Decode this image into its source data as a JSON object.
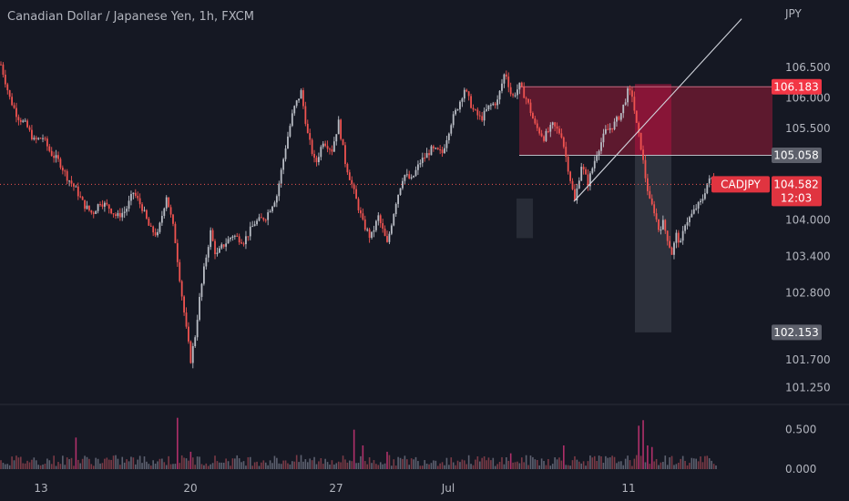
{
  "chart_data": {
    "type": "candlestick",
    "title": "Canadian Dollar / Japanese Yen, 1h, FXCM",
    "symbol": "CADJPY",
    "currency": "JPY",
    "grid": false,
    "price_axis": {
      "ticks": [
        "106.500",
        "106.000",
        "105.500",
        "104.000",
        "103.400",
        "102.800",
        "101.700",
        "101.250"
      ],
      "ylim": [
        101.0,
        106.95
      ]
    },
    "time_axis": {
      "ticks": [
        "13",
        "20",
        "27",
        "Jul",
        "11"
      ]
    },
    "volume_axis": {
      "ticks": [
        "0.500",
        "0.000"
      ],
      "ylim": [
        0,
        0.75
      ]
    },
    "price_path": [
      [
        0,
        106.55
      ],
      [
        8,
        106.0
      ],
      [
        15,
        105.7
      ],
      [
        23,
        105.55
      ],
      [
        30,
        105.3
      ],
      [
        38,
        105.35
      ],
      [
        45,
        105.1
      ],
      [
        53,
        104.95
      ],
      [
        60,
        104.7
      ],
      [
        68,
        104.5
      ],
      [
        75,
        104.25
      ],
      [
        83,
        104.1
      ],
      [
        90,
        104.3
      ],
      [
        98,
        104.2
      ],
      [
        105,
        104.05
      ],
      [
        113,
        104.15
      ],
      [
        120,
        104.45
      ],
      [
        128,
        104.2
      ],
      [
        135,
        103.85
      ],
      [
        142,
        103.75
      ],
      [
        150,
        104.4
      ],
      [
        157,
        103.8
      ],
      [
        163,
        102.9
      ],
      [
        168,
        102.2
      ],
      [
        172,
        101.7
      ],
      [
        176,
        102.1
      ],
      [
        180,
        102.7
      ],
      [
        185,
        103.3
      ],
      [
        190,
        103.8
      ],
      [
        195,
        103.4
      ],
      [
        200,
        103.55
      ],
      [
        210,
        103.75
      ],
      [
        220,
        103.65
      ],
      [
        230,
        103.95
      ],
      [
        240,
        104.05
      ],
      [
        250,
        104.4
      ],
      [
        258,
        105.2
      ],
      [
        265,
        105.8
      ],
      [
        272,
        106.1
      ],
      [
        278,
        105.4
      ],
      [
        285,
        104.9
      ],
      [
        292,
        105.3
      ],
      [
        300,
        105.15
      ],
      [
        306,
        105.6
      ],
      [
        312,
        104.95
      ],
      [
        320,
        104.45
      ],
      [
        328,
        103.95
      ],
      [
        335,
        103.7
      ],
      [
        342,
        104.05
      ],
      [
        350,
        103.6
      ],
      [
        358,
        104.3
      ],
      [
        365,
        104.75
      ],
      [
        372,
        104.65
      ],
      [
        380,
        104.95
      ],
      [
        390,
        105.15
      ],
      [
        400,
        105.1
      ],
      [
        408,
        105.6
      ],
      [
        415,
        105.9
      ],
      [
        420,
        106.15
      ],
      [
        428,
        105.8
      ],
      [
        435,
        105.65
      ],
      [
        442,
        105.85
      ],
      [
        450,
        105.95
      ],
      [
        457,
        106.45
      ],
      [
        463,
        106.0
      ],
      [
        470,
        106.2
      ],
      [
        477,
        105.95
      ],
      [
        484,
        105.55
      ],
      [
        492,
        105.35
      ],
      [
        500,
        105.55
      ],
      [
        508,
        105.4
      ],
      [
        514,
        104.85
      ],
      [
        520,
        104.3
      ],
      [
        526,
        104.9
      ],
      [
        532,
        104.6
      ],
      [
        540,
        105.1
      ],
      [
        548,
        105.45
      ],
      [
        555,
        105.55
      ],
      [
        562,
        105.75
      ],
      [
        568,
        106.1
      ],
      [
        572,
        106.05
      ],
      [
        576,
        105.55
      ],
      [
        580,
        105.2
      ],
      [
        584,
        104.7
      ],
      [
        588,
        104.3
      ],
      [
        592,
        104.15
      ],
      [
        596,
        103.85
      ],
      [
        600,
        103.95
      ],
      [
        604,
        103.7
      ],
      [
        608,
        103.45
      ],
      [
        612,
        103.75
      ],
      [
        616,
        103.6
      ],
      [
        620,
        103.95
      ],
      [
        625,
        104.05
      ],
      [
        630,
        104.2
      ],
      [
        635,
        104.3
      ],
      [
        640,
        104.6
      ],
      [
        645,
        104.7
      ],
      [
        648,
        104.58
      ]
    ],
    "trend_line": [
      [
        520,
        104.3
      ],
      [
        672,
        107.3
      ]
    ],
    "current_price": {
      "symbol": "CADJPY",
      "value": "104.582",
      "countdown": "12:03",
      "price": 104.582
    },
    "short_position": {
      "entry": 105.058,
      "stop": 106.183,
      "target": 102.153,
      "entry_label": "105.058",
      "stop_label": "106.183",
      "target_label": "102.153"
    },
    "volume_spikes": [
      [
        68,
        0.4
      ],
      [
        135,
        0.35
      ],
      [
        157,
        0.42
      ],
      [
        160,
        0.65
      ],
      [
        172,
        0.22
      ],
      [
        320,
        0.5
      ],
      [
        328,
        0.3
      ],
      [
        350,
        0.22
      ],
      [
        462,
        0.2
      ],
      [
        510,
        0.3
      ],
      [
        578,
        0.55
      ],
      [
        582,
        0.62
      ],
      [
        586,
        0.3
      ],
      [
        590,
        0.28
      ]
    ]
  },
  "colors": {
    "background": "#151823",
    "text": "#b2b5be",
    "bull": "#b8bcc4",
    "bear": "#ef5350",
    "stop_zone": "#801a33",
    "target_zone": "#363a45",
    "stop_label": "#f23645",
    "current_label": "#e03440",
    "neutral_label": "#5d606b"
  }
}
